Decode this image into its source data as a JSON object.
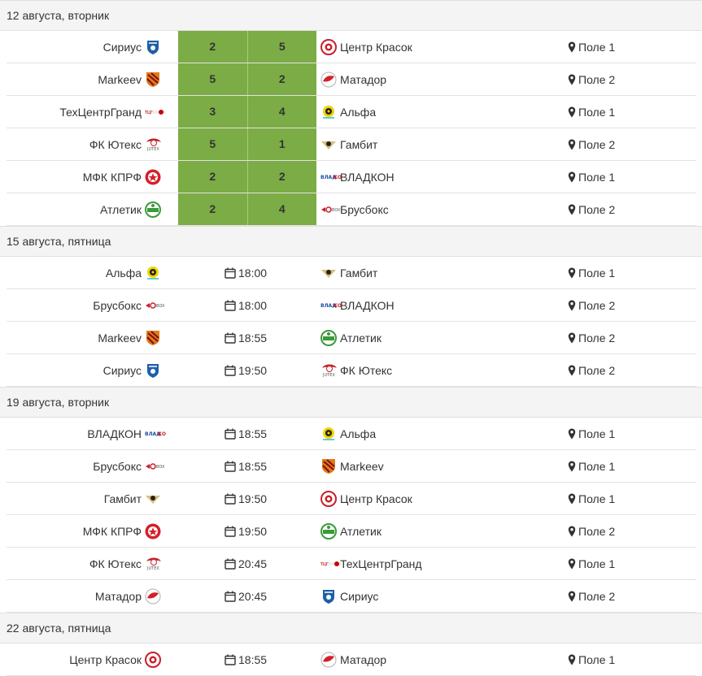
{
  "days": [
    {
      "date": "12 августа, вторник",
      "matches": [
        {
          "home": "Сириус",
          "home_logo": "sirius-logo",
          "score": [
            "2",
            "5"
          ],
          "away": "Центр Красок",
          "away_logo": "centr-krasok-logo",
          "field": "Поле 1"
        },
        {
          "home": "Markeev",
          "home_logo": "markeev-logo",
          "score": [
            "5",
            "2"
          ],
          "away": "Матадор",
          "away_logo": "matador-logo",
          "field": "Поле 2"
        },
        {
          "home": "ТехЦентрГранд",
          "home_logo": "tehcentrgrand-logo",
          "score": [
            "3",
            "4"
          ],
          "away": "Альфа",
          "away_logo": "alfa-logo",
          "field": "Поле 1"
        },
        {
          "home": "ФК Ютекс",
          "home_logo": "utex-logo",
          "score": [
            "5",
            "1"
          ],
          "away": "Гамбит",
          "away_logo": "gambit-logo",
          "field": "Поле 2"
        },
        {
          "home": "МФК КПРФ",
          "home_logo": "kprf-logo",
          "score": [
            "2",
            "2"
          ],
          "away": "ВЛАДКОН",
          "away_logo": "vladkon-logo",
          "field": "Поле 1"
        },
        {
          "home": "Атлетик",
          "home_logo": "atletik-logo",
          "score": [
            "2",
            "4"
          ],
          "away": "Брусбокс",
          "away_logo": "brusboks-logo",
          "field": "Поле 2"
        }
      ]
    },
    {
      "date": "15 августа, пятница",
      "matches": [
        {
          "home": "Альфа",
          "home_logo": "alfa-logo",
          "time": "18:00",
          "away": "Гамбит",
          "away_logo": "gambit-logo",
          "field": "Поле 1"
        },
        {
          "home": "Брусбокс",
          "home_logo": "brusboks-logo",
          "time": "18:00",
          "away": "ВЛАДКОН",
          "away_logo": "vladkon-logo",
          "field": "Поле 2"
        },
        {
          "home": "Markeev",
          "home_logo": "markeev-logo",
          "time": "18:55",
          "away": "Атлетик",
          "away_logo": "atletik-logo",
          "field": "Поле 2"
        },
        {
          "home": "Сириус",
          "home_logo": "sirius-logo",
          "time": "19:50",
          "away": "ФК Ютекс",
          "away_logo": "utex-logo",
          "field": "Поле 2"
        }
      ]
    },
    {
      "date": "19 августа, вторник",
      "matches": [
        {
          "home": "ВЛАДКОН",
          "home_logo": "vladkon-logo",
          "time": "18:55",
          "away": "Альфа",
          "away_logo": "alfa-logo",
          "field": "Поле 1"
        },
        {
          "home": "Брусбокс",
          "home_logo": "brusboks-logo",
          "time": "18:55",
          "away": "Markeev",
          "away_logo": "markeev-logo",
          "field": "Поле 1"
        },
        {
          "home": "Гамбит",
          "home_logo": "gambit-logo",
          "time": "19:50",
          "away": "Центр Красок",
          "away_logo": "centr-krasok-logo",
          "field": "Поле 1"
        },
        {
          "home": "МФК КПРФ",
          "home_logo": "kprf-logo",
          "time": "19:50",
          "away": "Атлетик",
          "away_logo": "atletik-logo",
          "field": "Поле 2"
        },
        {
          "home": "ФК Ютекс",
          "home_logo": "utex-logo",
          "time": "20:45",
          "away": "ТехЦентрГранд",
          "away_logo": "tehcentrgrand-logo",
          "field": "Поле 1"
        },
        {
          "home": "Матадор",
          "home_logo": "matador-logo",
          "time": "20:45",
          "away": "Сириус",
          "away_logo": "sirius-logo",
          "field": "Поле 2"
        }
      ]
    },
    {
      "date": "22 августа, пятница",
      "matches": [
        {
          "home": "Центр Красок",
          "home_logo": "centr-krasok-logo",
          "time": "18:55",
          "away": "Матадор",
          "away_logo": "matador-logo",
          "field": "Поле 1"
        }
      ]
    }
  ],
  "icons": {
    "calendar": "calendar-icon",
    "field": "map-pin-icon"
  },
  "colors": {
    "score_bg": "#7cac45",
    "header_bg": "#f4f4f4",
    "text": "#333333",
    "divider": "#e3e3e3"
  }
}
